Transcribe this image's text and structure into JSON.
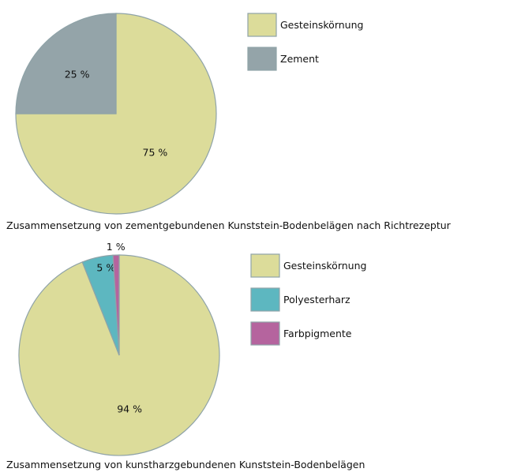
{
  "chart_data": [
    {
      "type": "pie",
      "title": "Zusammensetzung von zementgebundenen Kunststein-Bodenbelägen nach Richtrezeptur",
      "labels": [
        "Gesteinskörnung",
        "Zement"
      ],
      "values": [
        75,
        25
      ],
      "value_labels": [
        "75 %",
        "25 %"
      ],
      "colors": [
        "#dcdc9a",
        "#94a4a9"
      ],
      "legend_position": "right"
    },
    {
      "type": "pie",
      "title": "Zusammensetzung von kunstharzgebundenen Kunststein-Bodenbelägen",
      "labels": [
        "Gesteinskörnung",
        "Polyesterharz",
        "Farbpigmente"
      ],
      "values": [
        94,
        5,
        1
      ],
      "value_labels": [
        "94 %",
        "5 %",
        "1 %"
      ],
      "colors": [
        "#dcdc9a",
        "#5db7c0",
        "#b5649e"
      ],
      "legend_position": "right"
    }
  ]
}
